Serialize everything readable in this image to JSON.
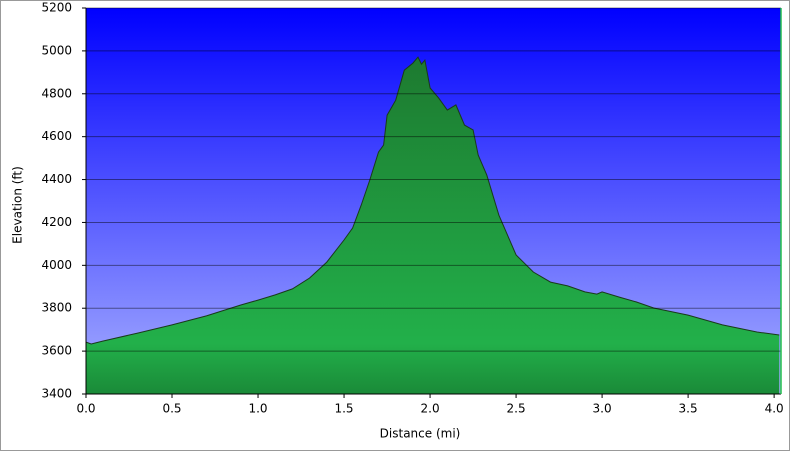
{
  "chart_data": {
    "type": "area",
    "x_label": "Distance   (mi)",
    "y_label": "Elevation (ft)",
    "x": [
      0,
      0.03,
      0.1,
      0.3,
      0.5,
      0.7,
      0.9,
      1.0,
      1.1,
      1.2,
      1.3,
      1.4,
      1.5,
      1.55,
      1.6,
      1.65,
      1.7,
      1.73,
      1.75,
      1.8,
      1.85,
      1.9,
      1.93,
      1.95,
      1.97,
      2.0,
      2.05,
      2.1,
      2.15,
      2.2,
      2.25,
      2.28,
      2.33,
      2.4,
      2.45,
      2.5,
      2.6,
      2.7,
      2.8,
      2.9,
      2.97,
      3.0,
      3.1,
      3.2,
      3.3,
      3.5,
      3.7,
      3.9,
      4.03
    ],
    "series": [
      {
        "name": "Elevation",
        "color": "#1a9a3a",
        "values": [
          3642,
          3633,
          3647,
          3684,
          3722,
          3764,
          3815,
          3838,
          3862,
          3890,
          3941,
          4015,
          4118,
          4174,
          4281,
          4398,
          4528,
          4561,
          4700,
          4770,
          4910,
          4943,
          4971,
          4938,
          4957,
          4827,
          4780,
          4724,
          4748,
          4654,
          4631,
          4514,
          4421,
          4234,
          4141,
          4048,
          3969,
          3922,
          3904,
          3876,
          3866,
          3876,
          3852,
          3829,
          3801,
          3768,
          3722,
          3689,
          3675
        ]
      }
    ],
    "xlim": [
      0,
      4.04
    ],
    "xticks": [
      {
        "value": 0,
        "label": "0.0"
      },
      0.5,
      {
        "value": 1,
        "label": "1.0"
      },
      1.5,
      {
        "value": 2,
        "label": "2.0"
      },
      2.5,
      {
        "value": 3,
        "label": "3.0"
      },
      3.5,
      {
        "value": 4,
        "label": "4.0"
      }
    ],
    "ylim": [
      3400,
      5200
    ],
    "yticks": [
      3400,
      3600,
      3800,
      4000,
      4200,
      4400,
      4600,
      4800,
      5000,
      5200
    ],
    "grid": true
  }
}
